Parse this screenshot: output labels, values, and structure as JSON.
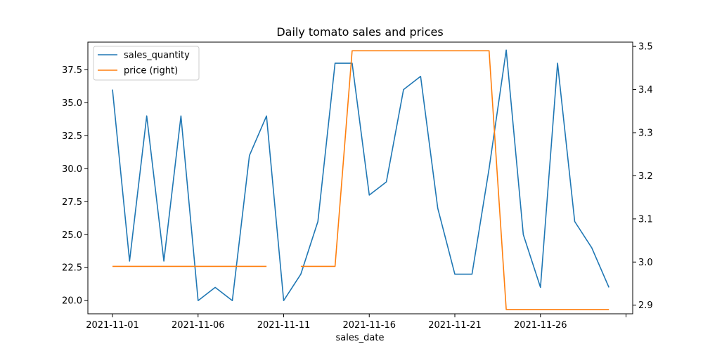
{
  "chart_data": {
    "type": "line",
    "title": "Daily tomato sales and prices",
    "xlabel": "sales_date",
    "ylabel_left": "",
    "ylabel_right": "",
    "x_start": "2021-11-01",
    "x_ticks": [
      "2021-11-01",
      "2021-11-06",
      "2021-11-11",
      "2021-11-16",
      "2021-11-21",
      "2021-11-26"
    ],
    "x_tick_unlabeled": "2021-12-01",
    "ylim_left": [
      19.0,
      39.6
    ],
    "ylim_right": [
      2.88,
      3.51
    ],
    "yticks_left": [
      "20.0",
      "22.5",
      "25.0",
      "27.5",
      "30.0",
      "32.5",
      "35.0",
      "37.5"
    ],
    "yticks_right": [
      "2.9",
      "3.0",
      "3.1",
      "3.2",
      "3.3",
      "3.4",
      "3.5"
    ],
    "legend_position": "upper-left",
    "series": [
      {
        "name": "sales_quantity",
        "axis": "left",
        "color": "#1f77b4",
        "dates": [
          "2021-11-01",
          "2021-11-02",
          "2021-11-03",
          "2021-11-04",
          "2021-11-05",
          "2021-11-06",
          "2021-11-07",
          "2021-11-08",
          "2021-11-09",
          "2021-11-10",
          "2021-11-11",
          "2021-11-12",
          "2021-11-13",
          "2021-11-14",
          "2021-11-15",
          "2021-11-16",
          "2021-11-17",
          "2021-11-18",
          "2021-11-19",
          "2021-11-20",
          "2021-11-21",
          "2021-11-22",
          "2021-11-23",
          "2021-11-24",
          "2021-11-25",
          "2021-11-26",
          "2021-11-27",
          "2021-11-28",
          "2021-11-29",
          "2021-11-30"
        ],
        "values": [
          36,
          23,
          34,
          23,
          34,
          20,
          21,
          20,
          31,
          34,
          20,
          22,
          26,
          38,
          38,
          28,
          29,
          36,
          37,
          27,
          22,
          22,
          30,
          39,
          25,
          21,
          38,
          26,
          24,
          21
        ]
      },
      {
        "name": "price (right)",
        "axis": "right",
        "color": "#ff7f0e",
        "dates": [
          "2021-11-01",
          "2021-11-02",
          "2021-11-03",
          "2021-11-04",
          "2021-11-05",
          "2021-11-06",
          "2021-11-07",
          "2021-11-08",
          "2021-11-09",
          "2021-11-10",
          "2021-11-11",
          "2021-11-12",
          "2021-11-13",
          "2021-11-14",
          "2021-11-15",
          "2021-11-16",
          "2021-11-17",
          "2021-11-18",
          "2021-11-19",
          "2021-11-20",
          "2021-11-21",
          "2021-11-22",
          "2021-11-23",
          "2021-11-24",
          "2021-11-25",
          "2021-11-26",
          "2021-11-27",
          "2021-11-28",
          "2021-11-29",
          "2021-11-30"
        ],
        "values": [
          2.99,
          2.99,
          2.99,
          2.99,
          2.99,
          2.99,
          2.99,
          2.99,
          2.99,
          2.99,
          null,
          2.99,
          2.99,
          2.99,
          3.49,
          3.49,
          3.49,
          3.49,
          3.49,
          3.49,
          3.49,
          3.49,
          3.49,
          2.89,
          2.89,
          2.89,
          2.89,
          2.89,
          2.89,
          2.89
        ]
      }
    ]
  }
}
